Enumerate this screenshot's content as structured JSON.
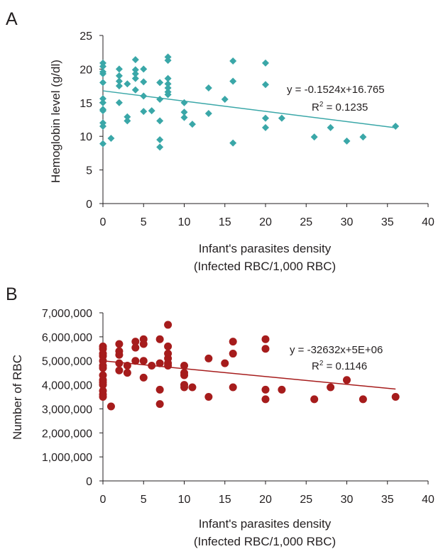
{
  "chart_data": [
    {
      "panel": "A",
      "type": "scatter",
      "xlabel": [
        "Infant's parasites density",
        "(Infected RBC/1,000 RBC)"
      ],
      "ylabel": "Hemoglobin level (g/dl)",
      "xlim": [
        0,
        40
      ],
      "ylim": [
        0,
        25
      ],
      "xticks": [
        "0",
        "5",
        "10",
        "15",
        "20",
        "25",
        "30",
        "35",
        "40"
      ],
      "yticks": [
        "0",
        "5",
        "10",
        "15",
        "20",
        "25"
      ],
      "grid": false,
      "marker": "diamond",
      "color": "#3aa7a8",
      "trendline_color": "#3aa7a8",
      "trendline": {
        "slope": -0.1524,
        "intercept": 16.765,
        "x_range": [
          0,
          36
        ]
      },
      "equation": "y = -0.1524x+16.765",
      "r2_label": "R",
      "r2_sup": "2",
      "r2_value": " = 0.1235",
      "points": [
        [
          0,
          20.9
        ],
        [
          0,
          20.4
        ],
        [
          0,
          19.6
        ],
        [
          0,
          19.3
        ],
        [
          0,
          18.0
        ],
        [
          0,
          15.6
        ],
        [
          0,
          15.0
        ],
        [
          0,
          14.0
        ],
        [
          0,
          13.8
        ],
        [
          0,
          12.0
        ],
        [
          0,
          11.5
        ],
        [
          0,
          8.9
        ],
        [
          1,
          9.7
        ],
        [
          2,
          20.0
        ],
        [
          2,
          19.0
        ],
        [
          2,
          18.2
        ],
        [
          2,
          17.5
        ],
        [
          2,
          15.0
        ],
        [
          3,
          17.8
        ],
        [
          3,
          12.9
        ],
        [
          3,
          12.3
        ],
        [
          4,
          21.4
        ],
        [
          4,
          19.9
        ],
        [
          4,
          19.3
        ],
        [
          4,
          18.6
        ],
        [
          4,
          16.9
        ],
        [
          5,
          20.0
        ],
        [
          5,
          18.1
        ],
        [
          5,
          16.0
        ],
        [
          5,
          13.7
        ],
        [
          6,
          13.8
        ],
        [
          7,
          18.0
        ],
        [
          7,
          15.5
        ],
        [
          7,
          12.3
        ],
        [
          7,
          9.5
        ],
        [
          7,
          8.4
        ],
        [
          8,
          21.8
        ],
        [
          8,
          21.3
        ],
        [
          8,
          18.6
        ],
        [
          8,
          17.8
        ],
        [
          8,
          17.2
        ],
        [
          8,
          16.6
        ],
        [
          8,
          16.2
        ],
        [
          10,
          15.0
        ],
        [
          10,
          13.6
        ],
        [
          10,
          12.8
        ],
        [
          11,
          11.8
        ],
        [
          13,
          17.2
        ],
        [
          13,
          13.4
        ],
        [
          15,
          15.5
        ],
        [
          16,
          21.2
        ],
        [
          16,
          18.2
        ],
        [
          16,
          9.0
        ],
        [
          20,
          20.9
        ],
        [
          20,
          17.7
        ],
        [
          20,
          12.7
        ],
        [
          20,
          11.3
        ],
        [
          22,
          12.7
        ],
        [
          26,
          9.9
        ],
        [
          28,
          11.3
        ],
        [
          30,
          9.3
        ],
        [
          32,
          9.9
        ],
        [
          36,
          11.5
        ]
      ]
    },
    {
      "panel": "B",
      "type": "scatter",
      "xlabel": [
        "Infant's parasites density",
        "(Infected RBC/1,000 RBC)"
      ],
      "ylabel": "Number of RBC",
      "xlim": [
        0,
        40
      ],
      "ylim": [
        0,
        7000000
      ],
      "xticks": [
        "0",
        "5",
        "10",
        "15",
        "20",
        "25",
        "30",
        "35",
        "40"
      ],
      "yticks": [
        "0",
        "1,000,000",
        "2,000,000",
        "3,000,000",
        "4,000,000",
        "5,000,000",
        "6,000,000",
        "7,000,000"
      ],
      "grid": false,
      "marker": "circle",
      "color": "#a61c1c",
      "trendline_color": "#a61c1c",
      "trendline": {
        "slope": -32632,
        "intercept": 5000000,
        "x_range": [
          0,
          36
        ]
      },
      "equation": "y = -32632x+5E+06",
      "r2_label": "R",
      "r2_sup": "2",
      "r2_value": " = 0.1146",
      "points": [
        [
          0,
          5600000
        ],
        [
          0,
          5500000
        ],
        [
          0,
          5300000
        ],
        [
          0,
          5200000
        ],
        [
          0,
          5000000
        ],
        [
          0,
          4800000
        ],
        [
          0,
          4700000
        ],
        [
          0,
          4400000
        ],
        [
          0,
          4200000
        ],
        [
          0,
          4100000
        ],
        [
          0,
          4000000
        ],
        [
          0,
          3750000
        ],
        [
          0,
          3600000
        ],
        [
          0,
          3500000
        ],
        [
          1,
          3100000
        ],
        [
          2,
          5700000
        ],
        [
          2,
          5400000
        ],
        [
          2,
          5250000
        ],
        [
          2,
          4900000
        ],
        [
          2,
          4600000
        ],
        [
          3,
          4800000
        ],
        [
          3,
          4500000
        ],
        [
          4,
          5800000
        ],
        [
          4,
          5550000
        ],
        [
          4,
          5000000
        ],
        [
          5,
          5900000
        ],
        [
          5,
          5700000
        ],
        [
          5,
          5000000
        ],
        [
          5,
          4300000
        ],
        [
          6,
          4800000
        ],
        [
          7,
          5900000
        ],
        [
          7,
          4900000
        ],
        [
          7,
          3800000
        ],
        [
          7,
          3200000
        ],
        [
          8,
          6500000
        ],
        [
          8,
          5600000
        ],
        [
          8,
          5300000
        ],
        [
          8,
          5100000
        ],
        [
          8,
          4900000
        ],
        [
          8,
          4800000
        ],
        [
          10,
          4800000
        ],
        [
          10,
          4500000
        ],
        [
          10,
          4400000
        ],
        [
          10,
          4000000
        ],
        [
          10,
          3900000
        ],
        [
          11,
          3900000
        ],
        [
          13,
          5100000
        ],
        [
          13,
          3500000
        ],
        [
          15,
          4900000
        ],
        [
          16,
          5800000
        ],
        [
          16,
          5300000
        ],
        [
          16,
          3900000
        ],
        [
          20,
          5900000
        ],
        [
          20,
          5500000
        ],
        [
          20,
          3800000
        ],
        [
          20,
          3400000
        ],
        [
          22,
          3800000
        ],
        [
          26,
          3400000
        ],
        [
          28,
          3900000
        ],
        [
          30,
          4200000
        ],
        [
          32,
          3400000
        ],
        [
          36,
          3500000
        ]
      ]
    }
  ]
}
